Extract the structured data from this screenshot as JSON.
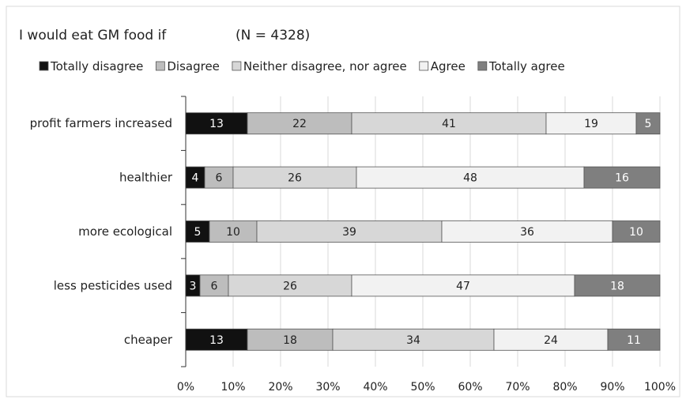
{
  "chart_data": {
    "type": "bar",
    "orientation": "horizontal",
    "stacked": true,
    "percent": true,
    "title": "I would eat GM food if",
    "subtitle": "(N = 4328)",
    "categories": [
      "profit farmers increased",
      "healthier",
      "more ecological",
      "less pesticides used",
      "cheaper"
    ],
    "series": [
      {
        "name": "Totally disagree",
        "color": "#111111",
        "label_color": "#ffffff",
        "values": [
          13,
          4,
          5,
          3,
          13
        ]
      },
      {
        "name": "Disagree",
        "color": "#bdbdbd",
        "label_color": "#222222",
        "values": [
          22,
          6,
          10,
          6,
          18
        ]
      },
      {
        "name": "Neither disagree, nor agree",
        "color": "#d7d7d7",
        "label_color": "#222222",
        "values": [
          41,
          26,
          39,
          26,
          34
        ]
      },
      {
        "name": "Agree",
        "color": "#f2f2f2",
        "label_color": "#222222",
        "values": [
          19,
          48,
          36,
          47,
          24
        ]
      },
      {
        "name": "Totally agree",
        "color": "#7f7f7f",
        "label_color": "#ffffff",
        "values": [
          5,
          16,
          10,
          18,
          11
        ]
      }
    ],
    "xlim": [
      0,
      100
    ],
    "x_ticks": [
      "0%",
      "10%",
      "20%",
      "30%",
      "40%",
      "50%",
      "60%",
      "70%",
      "80%",
      "90%",
      "100%"
    ],
    "grid": true,
    "legend": "top"
  }
}
